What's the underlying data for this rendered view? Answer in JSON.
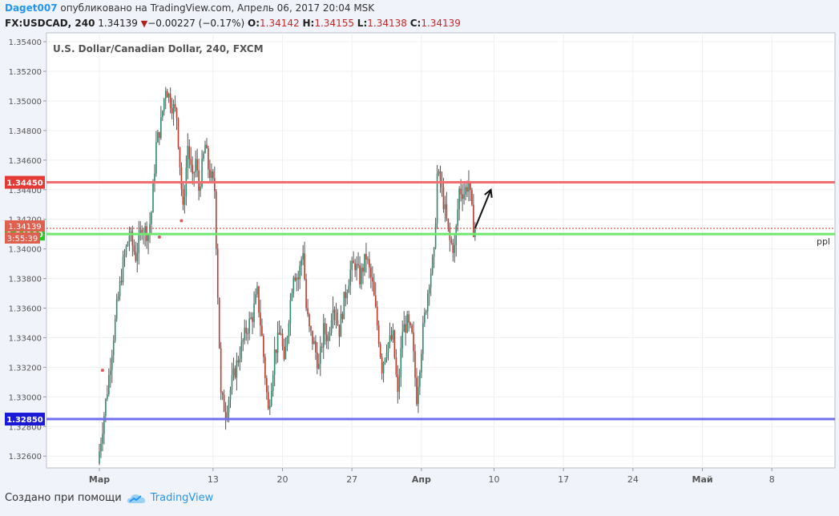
{
  "header": {
    "username": "Daget007",
    "published_text": " опубликовано на TradingView.com, Апрель 06, 2017 20:04 MSK"
  },
  "quote": {
    "symbol": "FX:USDCAD, 240",
    "last": "1.34139",
    "change_arrow": "▼",
    "change": "−0.00227 (−0.17%)",
    "o_label": "O:",
    "o_value": "1.34142",
    "h_label": "H:",
    "h_value": "1.34155",
    "l_label": "L:",
    "l_value": "1.34138",
    "c_label": "C:",
    "c_value": "1.34139"
  },
  "footer": {
    "created_with": "Создано при помощи",
    "brand": "TradingView"
  },
  "chart_data": {
    "type": "candlestick",
    "title": "U.S. Dollar/Canadian Dollar, 240, FXCM",
    "ylim": [
      1.3252,
      1.3546
    ],
    "y_ticks": [
      "1.35400",
      "1.35200",
      "1.35000",
      "1.34800",
      "1.34600",
      "1.34400",
      "1.34200",
      "1.34000",
      "1.33800",
      "1.33600",
      "1.33400",
      "1.33200",
      "1.33000",
      "1.32800",
      "1.32600"
    ],
    "x_ticks": [
      {
        "label": "Мар",
        "bold": true,
        "slot": 0
      },
      {
        "label": "13",
        "bold": false,
        "slot": 72
      },
      {
        "label": "20",
        "bold": false,
        "slot": 116
      },
      {
        "label": "27",
        "bold": false,
        "slot": 160
      },
      {
        "label": "Апр",
        "bold": true,
        "slot": 204
      },
      {
        "label": "10",
        "bold": false,
        "slot": 250
      },
      {
        "label": "17",
        "bold": false,
        "slot": 294
      },
      {
        "label": "24",
        "bold": false,
        "slot": 338
      },
      {
        "label": "Май",
        "bold": true,
        "slot": 382
      },
      {
        "label": "8",
        "bold": false,
        "slot": 426
      }
    ],
    "horizontal_lines": [
      {
        "price": 1.3445,
        "label": "1.34450",
        "color": "#f26d6d",
        "label_bg": "#e53935"
      },
      {
        "price": 1.341,
        "label": "1.34100",
        "color": "#6ee86e",
        "label_bg": "#22cc22"
      },
      {
        "price": 1.3285,
        "label": "1.32850",
        "color": "#6f6ff0",
        "label_bg": "#1a1ad6"
      }
    ],
    "current_price": {
      "price": 1.34139,
      "label": "1.34139",
      "countdown": "3:55:39",
      "label_bg": "#e06050"
    },
    "line_label": "ppl",
    "colors": {
      "up": "#2e8b6f",
      "down": "#c0392b",
      "wick": "#555555"
    },
    "anchors": [
      [
        0,
        1.3255
      ],
      [
        6,
        1.3305
      ],
      [
        12,
        1.336
      ],
      [
        16,
        1.339
      ],
      [
        20,
        1.341
      ],
      [
        24,
        1.3395
      ],
      [
        28,
        1.3415
      ],
      [
        32,
        1.341
      ],
      [
        34,
        1.3425
      ],
      [
        37,
        1.347
      ],
      [
        40,
        1.3485
      ],
      [
        43,
        1.351
      ],
      [
        46,
        1.35
      ],
      [
        50,
        1.349
      ],
      [
        54,
        1.3425
      ],
      [
        57,
        1.347
      ],
      [
        60,
        1.3445
      ],
      [
        62,
        1.346
      ],
      [
        64,
        1.344
      ],
      [
        68,
        1.347
      ],
      [
        70,
        1.3455
      ],
      [
        74,
        1.344
      ],
      [
        78,
        1.33
      ],
      [
        81,
        1.329
      ],
      [
        85,
        1.331
      ],
      [
        90,
        1.333
      ],
      [
        94,
        1.3345
      ],
      [
        98,
        1.3355
      ],
      [
        101,
        1.337
      ],
      [
        104,
        1.334
      ],
      [
        108,
        1.329
      ],
      [
        112,
        1.333
      ],
      [
        116,
        1.3345
      ],
      [
        118,
        1.332
      ],
      [
        121,
        1.3355
      ],
      [
        124,
        1.3385
      ],
      [
        127,
        1.338
      ],
      [
        130,
        1.34
      ],
      [
        132,
        1.336
      ],
      [
        134,
        1.3345
      ],
      [
        137,
        1.3335
      ],
      [
        140,
        1.332
      ],
      [
        143,
        1.3345
      ],
      [
        146,
        1.334
      ],
      [
        149,
        1.3365
      ],
      [
        153,
        1.3345
      ],
      [
        156,
        1.3365
      ],
      [
        160,
        1.3385
      ],
      [
        163,
        1.339
      ],
      [
        166,
        1.338
      ],
      [
        170,
        1.3395
      ],
      [
        174,
        1.3375
      ],
      [
        178,
        1.334
      ],
      [
        180,
        1.332
      ],
      [
        183,
        1.3335
      ],
      [
        187,
        1.334
      ],
      [
        190,
        1.33
      ],
      [
        193,
        1.3345
      ],
      [
        196,
        1.335
      ],
      [
        199,
        1.334
      ],
      [
        202,
        1.33
      ],
      [
        206,
        1.3345
      ],
      [
        210,
        1.338
      ],
      [
        213,
        1.3395
      ],
      [
        215,
        1.345
      ],
      [
        217,
        1.3445
      ],
      [
        220,
        1.3425
      ],
      [
        223,
        1.3405
      ],
      [
        226,
        1.34
      ],
      [
        229,
        1.344
      ],
      [
        232,
        1.3438
      ],
      [
        235,
        1.3445
      ],
      [
        238,
        1.34139
      ]
    ],
    "markers": [
      {
        "slot": 2,
        "price": 1.3318
      },
      {
        "slot": 38,
        "price": 1.3408
      },
      {
        "slot": 52,
        "price": 1.3419
      }
    ],
    "arrow": {
      "from": [
        238,
        1.3414
      ],
      "to": [
        248,
        1.344
      ]
    }
  }
}
